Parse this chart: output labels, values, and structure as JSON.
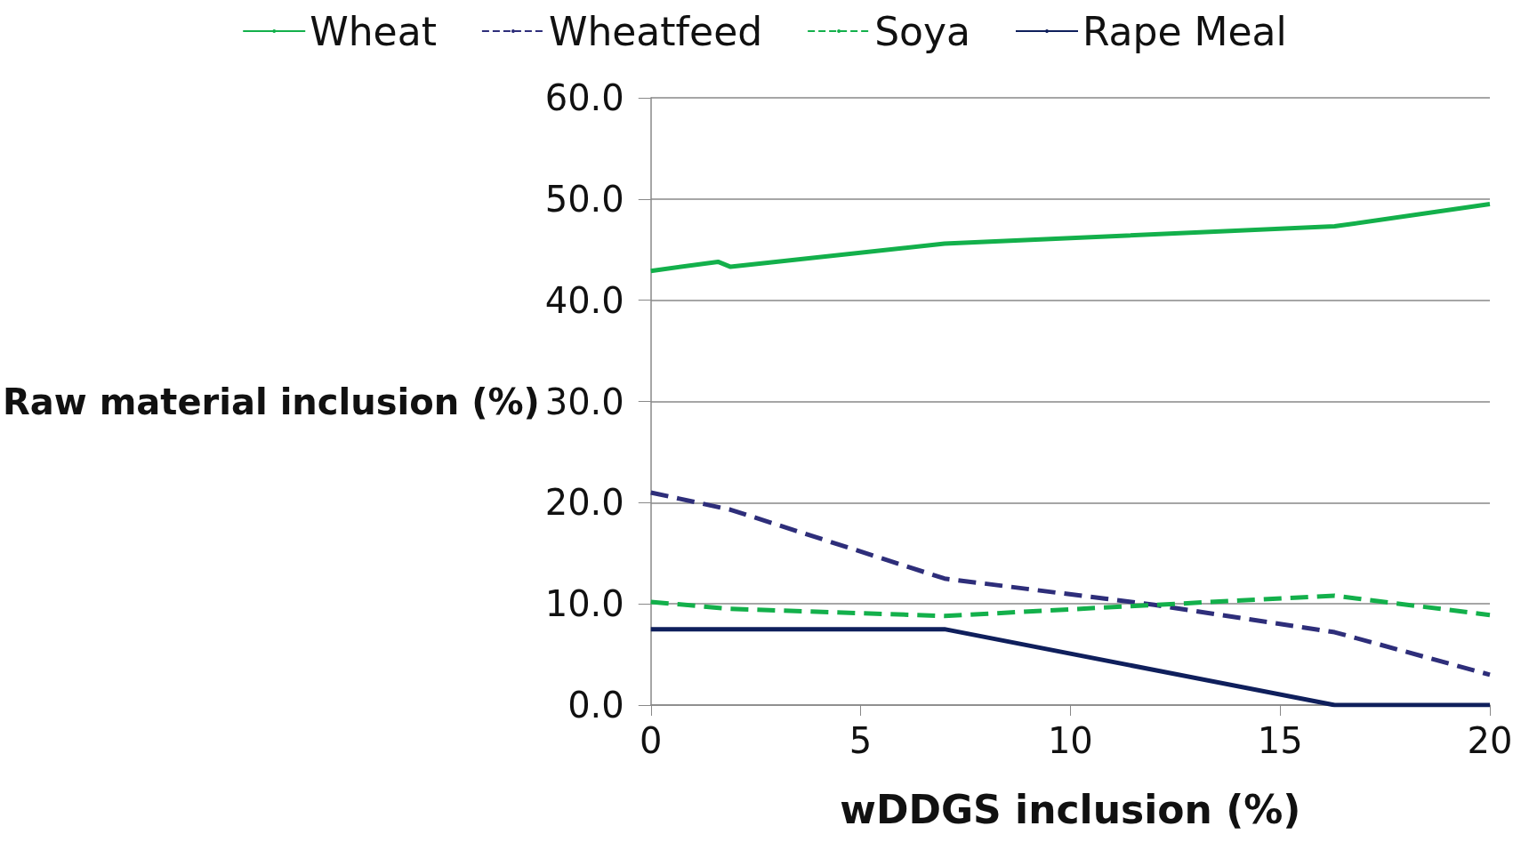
{
  "chart_data": {
    "type": "line",
    "xlabel": "wDDGS inclusion (%)",
    "ylabel": "Raw material inclusion (%)",
    "xlim": [
      0,
      20
    ],
    "xticks": [
      0,
      5,
      10,
      15,
      20
    ],
    "ylim": [
      0,
      60
    ],
    "yticks": [
      {
        "value": 0,
        "label": "0.0"
      },
      {
        "value": 10,
        "label": "10.0"
      },
      {
        "value": 20,
        "label": "20.0"
      },
      {
        "value": 30,
        "label": "30.0"
      },
      {
        "value": 40,
        "label": "40.0"
      },
      {
        "value": 50,
        "label": "50.0"
      },
      {
        "value": 60,
        "label": "60.0"
      }
    ],
    "grid": "y",
    "legend": "top",
    "marker": "none",
    "series": [
      {
        "name": "Wheat",
        "color": "#13b04b",
        "line_style": "solid",
        "x": [
          0,
          1.6,
          1.9,
          7,
          16.3,
          20
        ],
        "values": [
          42.9,
          43.8,
          43.3,
          45.6,
          47.3,
          49.5
        ]
      },
      {
        "name": "Wheatfeed",
        "color": "#2e2e7a",
        "line_style": "dashed",
        "x": [
          0,
          1.9,
          7,
          12,
          16.3,
          20
        ],
        "values": [
          21.0,
          19.3,
          12.5,
          9.9,
          7.2,
          3.0
        ]
      },
      {
        "name": "Soya",
        "color": "#13b04b",
        "line_style": "dashed",
        "x": [
          0,
          1.9,
          7,
          12,
          16.3,
          20
        ],
        "values": [
          10.2,
          9.5,
          8.8,
          9.9,
          10.8,
          8.9
        ]
      },
      {
        "name": "Rape Meal",
        "color": "#0f1f5c",
        "line_style": "solid",
        "x": [
          0,
          7,
          16.3,
          20
        ],
        "values": [
          7.5,
          7.5,
          0,
          0
        ]
      }
    ]
  }
}
